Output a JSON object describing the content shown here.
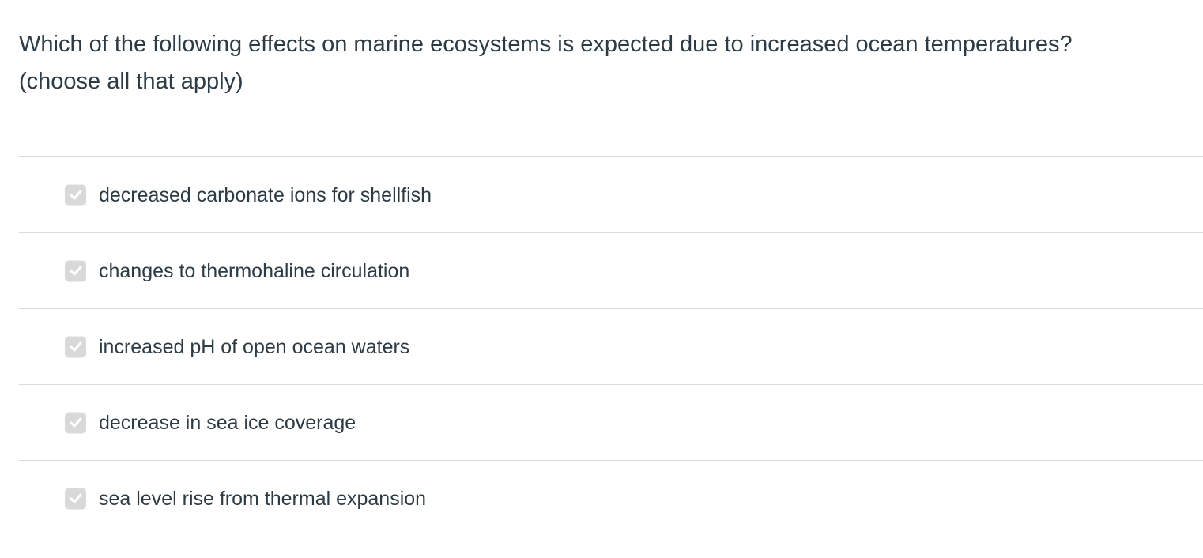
{
  "question": {
    "line1": "Which of the following effects on marine ecosystems is expected due to increased ocean temperatures?",
    "line2": "(choose all that apply)"
  },
  "answers": [
    {
      "label": "decreased carbonate ions for shellfish",
      "checked": true
    },
    {
      "label": "changes to thermohaline circulation",
      "checked": true
    },
    {
      "label": "increased pH of open ocean waters",
      "checked": true
    },
    {
      "label": "decrease in sea ice coverage",
      "checked": true
    },
    {
      "label": "sea level rise from thermal expansion",
      "checked": true
    }
  ],
  "colors": {
    "text": "#2d3b45",
    "divider": "#d8dde1",
    "checkbox_bg": "#d9d9d9",
    "checkmark": "#ffffff"
  },
  "icons": {
    "checkbox": "checkmark-icon"
  }
}
